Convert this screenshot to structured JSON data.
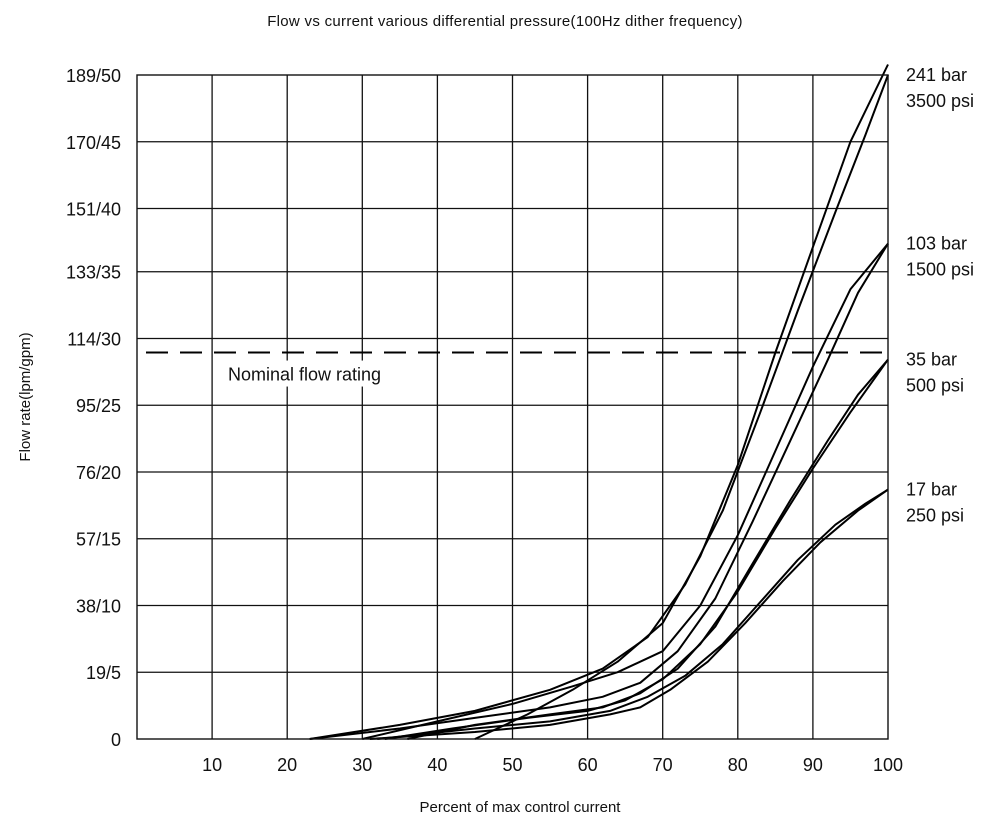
{
  "chart_data": {
    "type": "line",
    "title": "Flow vs current various differential pressure(100Hz dither frequency)",
    "xlabel": "Percent of max control current",
    "ylabel": "Flow rate(lpm/gpm)",
    "xlim": [
      0,
      100
    ],
    "ylim": [
      0,
      189
    ],
    "x_ticks": [
      10,
      20,
      30,
      40,
      50,
      60,
      70,
      80,
      90,
      100
    ],
    "x_tick_labels": [
      "10",
      "20",
      "30",
      "40",
      "50",
      "60",
      "70",
      "80",
      "90",
      "100"
    ],
    "y_ticks": [
      0,
      19,
      38,
      57,
      76,
      95,
      114,
      133,
      151,
      170,
      189
    ],
    "y_tick_labels": [
      "0",
      "19/5",
      "38/10",
      "57/15",
      "76/20",
      "95/25",
      "114/30",
      "133/35",
      "151/40",
      "170/45",
      "189/50"
    ],
    "grid": true,
    "reference_line": {
      "y": 110,
      "label": "Nominal flow rating"
    },
    "curve_labels": [
      {
        "lines": [
          "241 bar",
          "3500 psi"
        ],
        "y": 189
      },
      {
        "lines": [
          "103 bar",
          "1500 psi"
        ],
        "y": 141
      },
      {
        "lines": [
          "35 bar",
          "500 psi"
        ],
        "y": 108
      },
      {
        "lines": [
          "17 bar",
          "250 psi"
        ],
        "y": 71
      }
    ],
    "series": [
      {
        "x": [
          45,
          52,
          58,
          64,
          70,
          75,
          80,
          85,
          90,
          95,
          100
        ],
        "y": [
          0,
          7,
          14,
          22,
          33,
          52,
          78,
          110,
          140,
          170,
          192
        ]
      },
      {
        "x": [
          23,
          35,
          45,
          55,
          62,
          68,
          73,
          78,
          83,
          88,
          93,
          97,
          100
        ],
        "y": [
          0,
          4,
          8,
          14,
          20,
          29,
          44,
          65,
          93,
          122,
          150,
          172,
          189
        ]
      },
      {
        "x": [
          30,
          40,
          50,
          58,
          64,
          70,
          75,
          80,
          85,
          90,
          95,
          100
        ],
        "y": [
          0,
          5,
          10,
          15,
          19,
          25,
          38,
          58,
          82,
          106,
          128,
          141
        ]
      },
      {
        "x": [
          23,
          35,
          45,
          55,
          62,
          67,
          72,
          77,
          82,
          87,
          92,
          96,
          100
        ],
        "y": [
          0,
          3,
          6,
          9,
          12,
          16,
          25,
          40,
          62,
          85,
          108,
          127,
          141
        ]
      },
      {
        "x": [
          36,
          45,
          55,
          62,
          67,
          72,
          77,
          82,
          87,
          92,
          96,
          100
        ],
        "y": [
          0,
          4,
          7,
          9,
          13,
          20,
          32,
          50,
          68,
          85,
          98,
          108
        ]
      },
      {
        "x": [
          33,
          42,
          52,
          60,
          65,
          70,
          75,
          80,
          85,
          90,
          95,
          100
        ],
        "y": [
          0,
          3,
          6,
          8,
          11,
          17,
          27,
          42,
          60,
          77,
          93,
          108
        ]
      },
      {
        "x": [
          32,
          45,
          55,
          63,
          68,
          73,
          78,
          83,
          88,
          93,
          97,
          100
        ],
        "y": [
          0,
          3,
          5,
          8,
          12,
          18,
          27,
          39,
          51,
          61,
          67,
          71
        ]
      },
      {
        "x": [
          31,
          45,
          55,
          63,
          67,
          71,
          76,
          81,
          86,
          91,
          96,
          100
        ],
        "y": [
          0,
          2,
          4,
          7,
          9,
          14,
          22,
          33,
          45,
          56,
          65,
          71
        ]
      }
    ]
  }
}
